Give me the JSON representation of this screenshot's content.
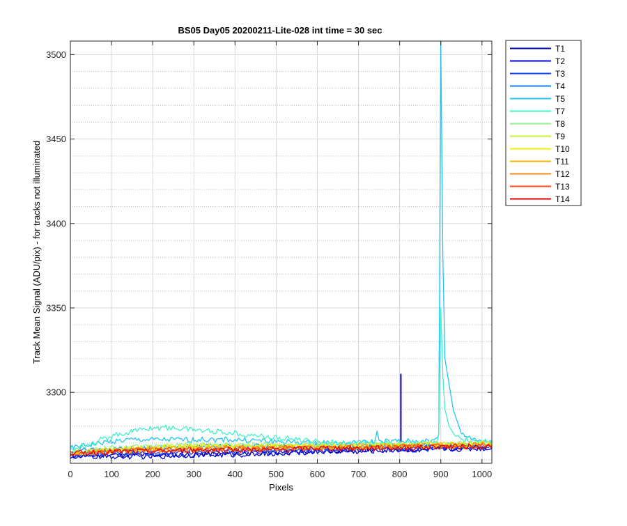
{
  "chart_data": {
    "type": "line",
    "title": "BS05 Day05 20200211-Lite-028 int time = 30 sec",
    "xlabel": "Pixels",
    "ylabel": "Track Mean Signal (ADU/pix) - for tracks not illuminated",
    "xlim": [
      0,
      1024
    ],
    "ylim": [
      3258,
      3508
    ],
    "x_ticks": [
      0,
      100,
      200,
      300,
      400,
      500,
      600,
      700,
      800,
      900,
      1000
    ],
    "y_ticks": [
      3300,
      3350,
      3400,
      3450,
      3500
    ],
    "y_minor_grid_step": 10,
    "grid": true,
    "legend_position": "outside-top-right",
    "series": [
      {
        "name": "T1",
        "color": "#0000aa",
        "x": [
          0,
          100,
          200,
          300,
          400,
          500,
          600,
          700,
          800,
          850,
          900,
          950,
          1000,
          1024
        ],
        "y": [
          3262,
          3263,
          3263,
          3263,
          3264,
          3264,
          3265,
          3266,
          3266,
          3266,
          3267,
          3267,
          3267,
          3267
        ],
        "spike": {
          "x": 803,
          "y": 3311
        }
      },
      {
        "name": "T2",
        "color": "#0000dd",
        "x": [
          0,
          100,
          200,
          300,
          400,
          500,
          600,
          700,
          800,
          900,
          1000,
          1024
        ],
        "y": [
          3262,
          3262,
          3262,
          3263,
          3263,
          3264,
          3265,
          3265,
          3266,
          3266,
          3267,
          3267
        ]
      },
      {
        "name": "T3",
        "color": "#1040ff",
        "x": [
          0,
          100,
          200,
          300,
          400,
          500,
          600,
          700,
          800,
          900,
          1000,
          1024
        ],
        "y": [
          3263,
          3264,
          3264,
          3265,
          3265,
          3266,
          3266,
          3267,
          3267,
          3268,
          3268,
          3268
        ]
      },
      {
        "name": "T4",
        "color": "#1a80e6",
        "x": [
          0,
          100,
          200,
          300,
          400,
          500,
          600,
          700,
          800,
          900,
          1000,
          1024
        ],
        "y": [
          3265,
          3266,
          3267,
          3268,
          3268,
          3268,
          3268,
          3268,
          3268,
          3269,
          3269,
          3269
        ]
      },
      {
        "name": "T5",
        "color": "#20c4f0",
        "x": [
          0,
          50,
          100,
          150,
          200,
          250,
          300,
          400,
          500,
          600,
          700,
          740,
          745,
          750,
          800,
          880,
          895,
          900,
          905,
          910,
          930,
          950,
          1000,
          1024
        ],
        "y": [
          3267,
          3269,
          3271,
          3272,
          3272,
          3272,
          3272,
          3272,
          3271,
          3270,
          3270,
          3271,
          3277,
          3271,
          3271,
          3271,
          3275,
          3508,
          3380,
          3320,
          3290,
          3275,
          3271,
          3271
        ]
      },
      {
        "name": "T7",
        "color": "#40f0c8",
        "x": [
          0,
          50,
          100,
          150,
          200,
          250,
          300,
          350,
          400,
          500,
          600,
          700,
          800,
          890,
          895,
          900,
          905,
          910,
          920,
          935,
          950,
          1000,
          1024
        ],
        "y": [
          3266,
          3270,
          3274,
          3277,
          3279,
          3279,
          3278,
          3277,
          3276,
          3273,
          3271,
          3270,
          3270,
          3270,
          3275,
          3350,
          3310,
          3290,
          3280,
          3274,
          3272,
          3271,
          3271
        ]
      },
      {
        "name": "T8",
        "color": "#90f090",
        "x": [
          0,
          100,
          200,
          300,
          400,
          500,
          600,
          700,
          800,
          900,
          1000,
          1024
        ],
        "y": [
          3265,
          3267,
          3268,
          3269,
          3269,
          3269,
          3269,
          3269,
          3269,
          3270,
          3270,
          3270
        ]
      },
      {
        "name": "T9",
        "color": "#c8f040",
        "x": [
          0,
          100,
          200,
          300,
          400,
          500,
          600,
          700,
          800,
          900,
          1000,
          1024
        ],
        "y": [
          3264,
          3266,
          3268,
          3268,
          3268,
          3268,
          3268,
          3268,
          3269,
          3269,
          3270,
          3270
        ]
      },
      {
        "name": "T10",
        "color": "#f0f000",
        "x": [
          0,
          100,
          200,
          300,
          400,
          500,
          600,
          700,
          800,
          900,
          1000,
          1024
        ],
        "y": [
          3264,
          3266,
          3267,
          3268,
          3268,
          3268,
          3268,
          3268,
          3269,
          3269,
          3270,
          3270
        ]
      },
      {
        "name": "T11",
        "color": "#f0b400",
        "x": [
          0,
          100,
          200,
          300,
          400,
          500,
          600,
          700,
          800,
          900,
          1000,
          1024
        ],
        "y": [
          3264,
          3265,
          3266,
          3267,
          3267,
          3267,
          3268,
          3268,
          3268,
          3269,
          3269,
          3269
        ]
      },
      {
        "name": "T12",
        "color": "#f08c1e",
        "x": [
          0,
          100,
          200,
          300,
          400,
          500,
          600,
          700,
          800,
          900,
          1000,
          1024
        ],
        "y": [
          3264,
          3265,
          3266,
          3266,
          3267,
          3267,
          3267,
          3268,
          3268,
          3268,
          3269,
          3269
        ]
      },
      {
        "name": "T13",
        "color": "#ff4a1a",
        "x": [
          0,
          100,
          200,
          300,
          400,
          500,
          600,
          700,
          800,
          900,
          1000,
          1024
        ],
        "y": [
          3264,
          3265,
          3266,
          3266,
          3266,
          3267,
          3267,
          3267,
          3268,
          3268,
          3268,
          3268
        ]
      },
      {
        "name": "T14",
        "color": "#e00000",
        "x": [
          0,
          100,
          200,
          300,
          400,
          500,
          600,
          700,
          800,
          900,
          1000,
          1024
        ],
        "y": [
          3264,
          3265,
          3265,
          3266,
          3266,
          3266,
          3267,
          3267,
          3267,
          3268,
          3268,
          3268
        ]
      }
    ]
  }
}
